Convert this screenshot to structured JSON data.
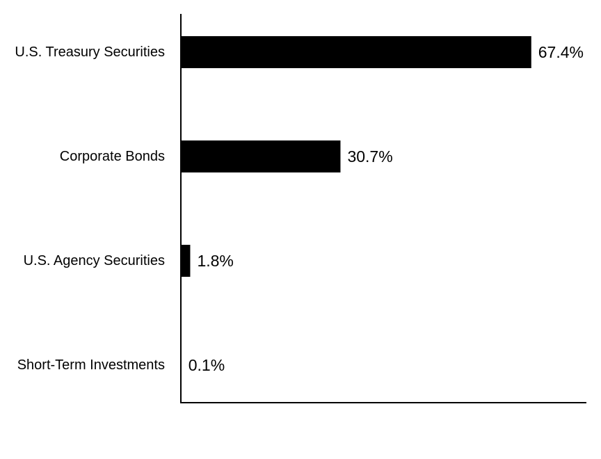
{
  "chart_data": {
    "type": "bar",
    "orientation": "horizontal",
    "categories": [
      "U.S. Treasury Securities",
      "Corporate Bonds",
      "U.S. Agency Securities",
      "Short-Term Investments"
    ],
    "values": [
      67.4,
      30.7,
      1.8,
      0.1
    ],
    "data_labels": [
      "67.4%",
      "30.7%",
      "1.8%",
      "0.1%"
    ],
    "title": "",
    "xlabel": "",
    "ylabel": "",
    "xlim": [
      0,
      78
    ],
    "grid": false,
    "legend": "none",
    "bar_color": "#000000",
    "axis_color": "#000000"
  }
}
